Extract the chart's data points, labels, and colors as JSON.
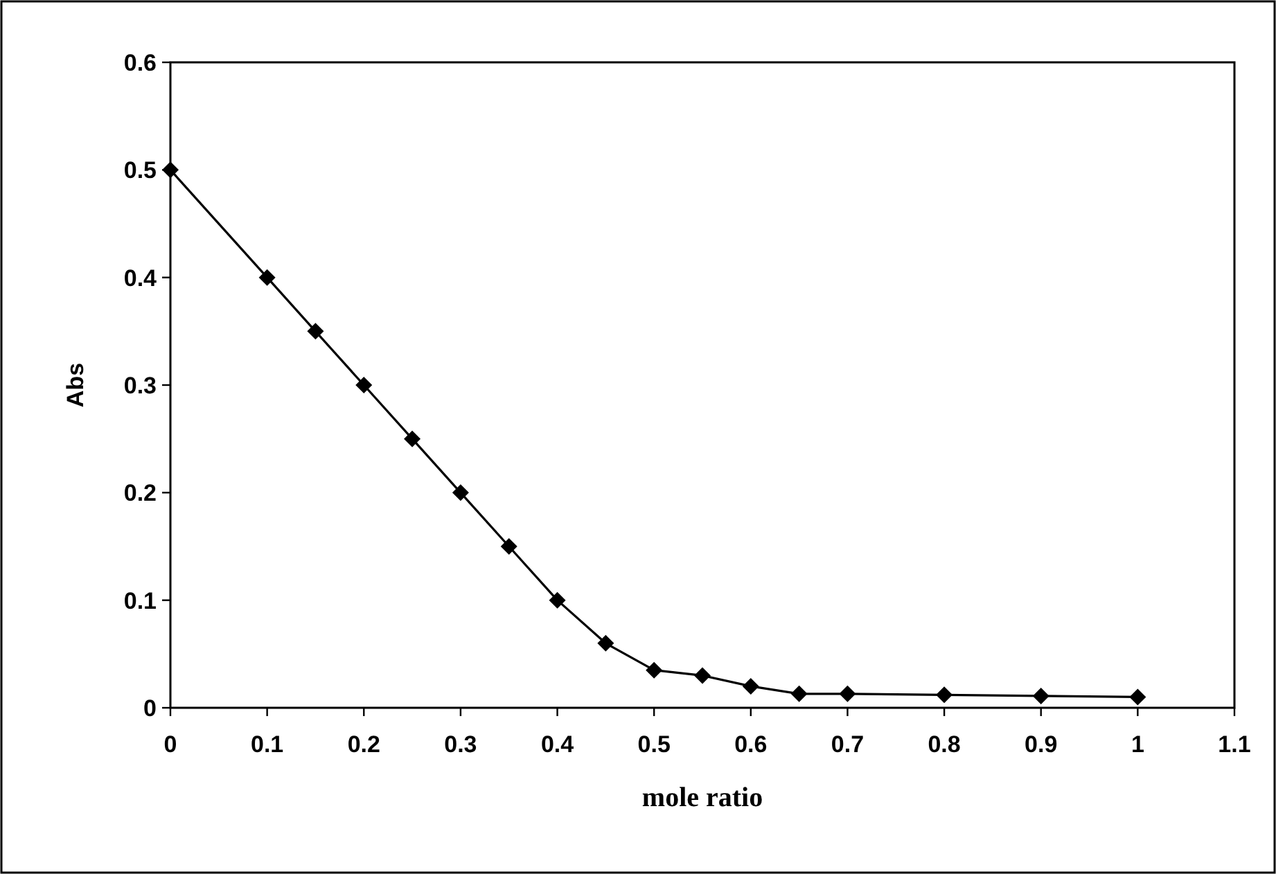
{
  "chart_data": {
    "type": "line",
    "xlabel": "mole ratio",
    "ylabel": "Abs",
    "x": [
      0,
      0.1,
      0.15,
      0.2,
      0.25,
      0.3,
      0.35,
      0.4,
      0.45,
      0.5,
      0.55,
      0.6,
      0.65,
      0.7,
      0.8,
      0.9,
      1
    ],
    "series": [
      {
        "color": "#000000",
        "values": [
          0.5,
          0.4,
          0.35,
          0.3,
          0.25,
          0.2,
          0.15,
          0.1,
          0.06,
          0.035,
          0.03,
          0.02,
          0.013,
          0.013,
          0.012,
          0.011,
          0.01
        ]
      }
    ],
    "xlim": [
      0,
      1.1
    ],
    "xticks": [
      0,
      0.1,
      0.2,
      0.3,
      0.4,
      0.5,
      0.6,
      0.7,
      0.8,
      0.9,
      1,
      1.1
    ],
    "ylim": [
      0,
      0.6
    ],
    "yticks": [
      0,
      0.1,
      0.2,
      0.3,
      0.4,
      0.5,
      0.6
    ],
    "grid": false,
    "marker": "diamond",
    "line_style": "solid"
  }
}
